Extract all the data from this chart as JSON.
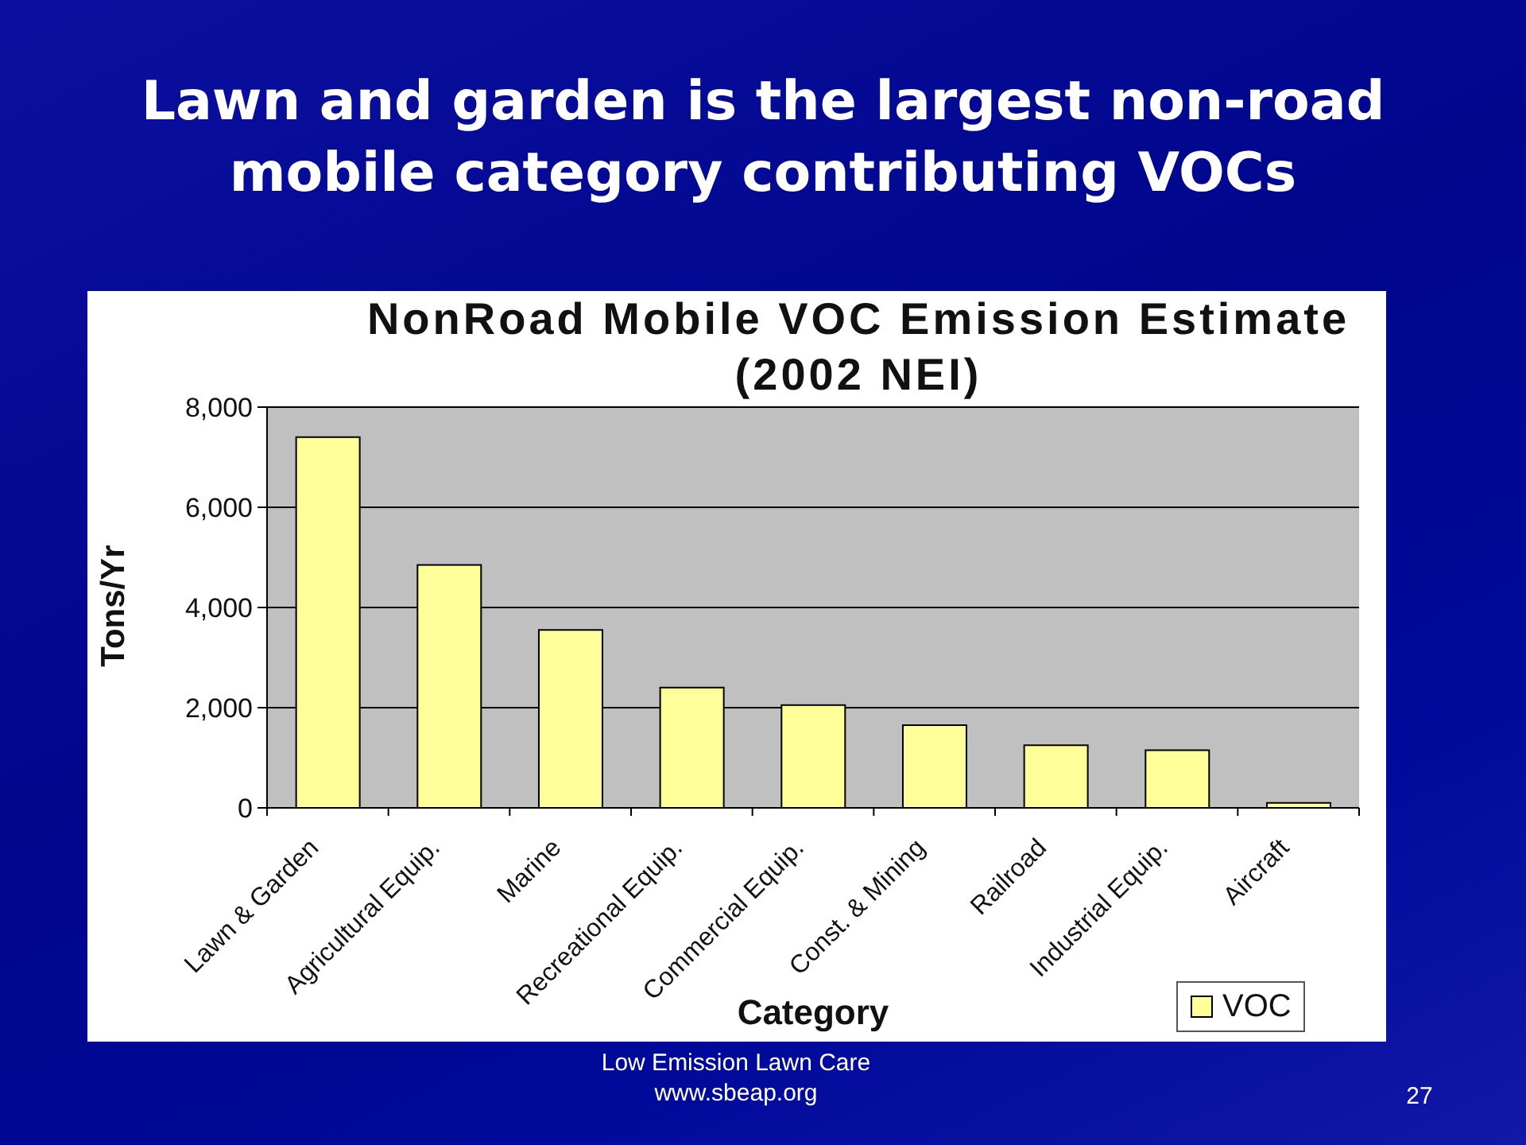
{
  "chart_data": {
    "type": "bar",
    "title": "Lawn and garden is the largest non-road mobile category contributing VOCs",
    "subtitle": "NonRoad Mobile VOC Emission Estimate (2002 NEI)",
    "xlabel": "Category",
    "ylabel": "Tons/Yr",
    "categories": [
      "Lawn & Garden",
      "Agricultural Equip.",
      "Marine",
      "Recreational Equip.",
      "Commercial Equip.",
      "Const. & Mining",
      "Railroad",
      "Industrial Equip.",
      "Aircraft"
    ],
    "series": [
      {
        "name": "VOC",
        "color": "#ffff99",
        "values": [
          7400,
          4850,
          3550,
          2400,
          2050,
          1650,
          1250,
          1150,
          100
        ]
      }
    ],
    "ylim": [
      0,
      8000
    ],
    "yticks": [
      {
        "value": 0,
        "label": "0"
      },
      {
        "value": 2000,
        "label": "2,000"
      },
      {
        "value": 4000,
        "label": "4,000"
      },
      {
        "value": 6000,
        "label": "6,000"
      },
      {
        "value": 8000,
        "label": "8,000"
      }
    ],
    "grid": "y",
    "legend": "bottom right",
    "annotations": [
      "Low Emission Lawn Care",
      "www.sbeap.org",
      "27"
    ]
  }
}
